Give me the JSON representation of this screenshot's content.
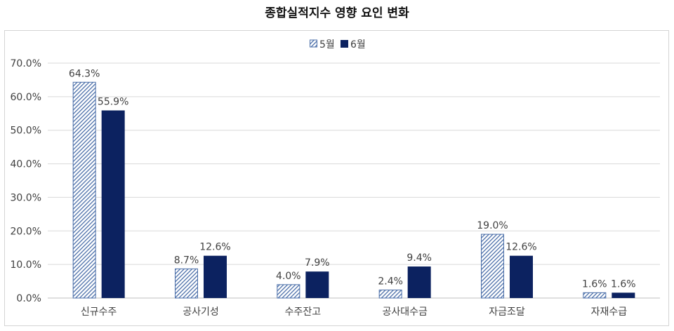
{
  "title": "종합실적지수 영향 요인 변화",
  "colors": {
    "may": "#4a6ea8",
    "june": "#0c2260",
    "grid": "#d9d9d9",
    "text": "#404040"
  },
  "chart_data": {
    "type": "bar",
    "categories": [
      "신규수주",
      "공사기성",
      "수주잔고",
      "공사대수금",
      "자금조달",
      "자재수급"
    ],
    "series": [
      {
        "name": "5월",
        "values": [
          64.3,
          8.7,
          4.0,
          2.4,
          19.0,
          1.6
        ],
        "labels": [
          "64.3%",
          "8.7%",
          "4.0%",
          "2.4%",
          "19.0%",
          "1.6%"
        ],
        "pattern": "hatched"
      },
      {
        "name": "6월",
        "values": [
          55.9,
          12.6,
          7.9,
          9.4,
          12.6,
          1.6
        ],
        "labels": [
          "55.9%",
          "12.6%",
          "7.9%",
          "9.4%",
          "12.6%",
          "1.6%"
        ],
        "pattern": "solid"
      }
    ],
    "yticks": [
      0,
      10,
      20,
      30,
      40,
      50,
      60,
      70
    ],
    "ytick_labels": [
      "0.0%",
      "10.0%",
      "20.0%",
      "30.0%",
      "40.0%",
      "50.0%",
      "60.0%",
      "70.0%"
    ],
    "ylim": [
      0,
      70
    ],
    "grid": true,
    "legend_position": "top-center"
  }
}
